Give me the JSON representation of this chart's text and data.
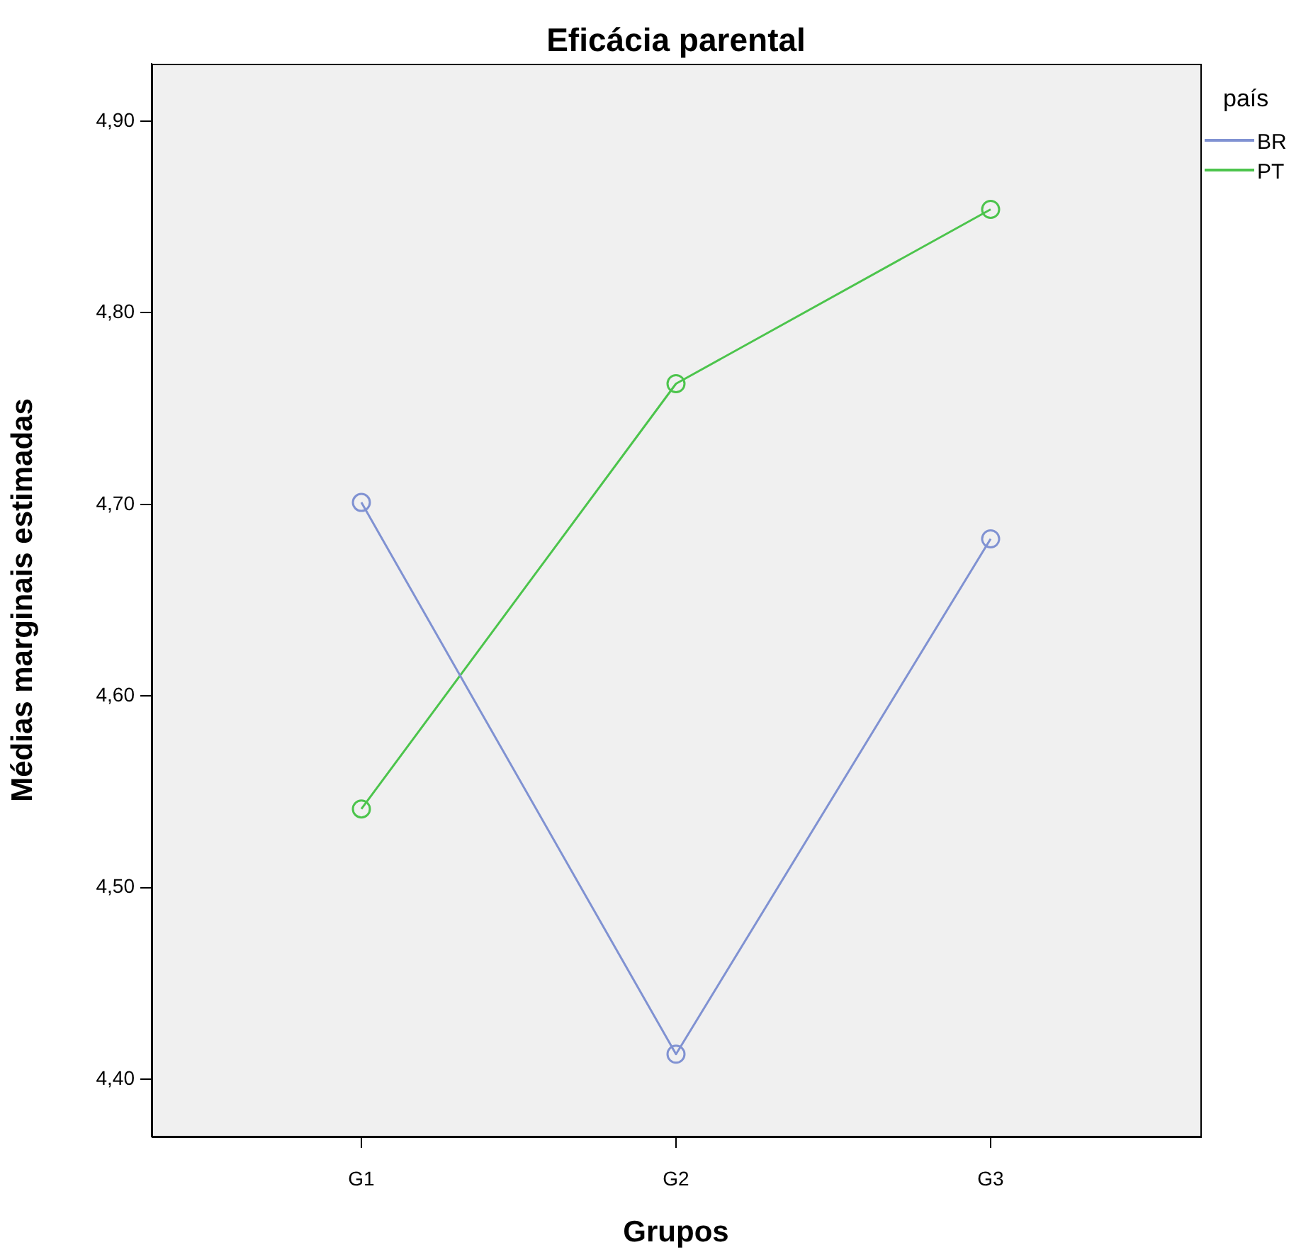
{
  "chart_data": {
    "type": "line",
    "title": "Eficácia parental",
    "xlabel": "Grupos",
    "ylabel": "Médias marginais estimadas",
    "legend_title": "país",
    "categories": [
      "G1",
      "G2",
      "G3"
    ],
    "series": [
      {
        "name": "BR",
        "color": "#8092d2",
        "values": [
          4.701,
          4.413,
          4.682
        ]
      },
      {
        "name": "PT",
        "color": "#4cc44c",
        "values": [
          4.541,
          4.763,
          4.854
        ]
      }
    ],
    "ylim": [
      4.37,
      4.93
    ],
    "yticks": [
      {
        "value": 4.4,
        "label": "4,40"
      },
      {
        "value": 4.5,
        "label": "4,50"
      },
      {
        "value": 4.6,
        "label": "4,60"
      },
      {
        "value": 4.7,
        "label": "4,70"
      },
      {
        "value": 4.8,
        "label": "4,80"
      },
      {
        "value": 4.9,
        "label": "4,90"
      }
    ],
    "grid": false,
    "legend": "top right",
    "marker": "circle",
    "line_style": "solid"
  }
}
